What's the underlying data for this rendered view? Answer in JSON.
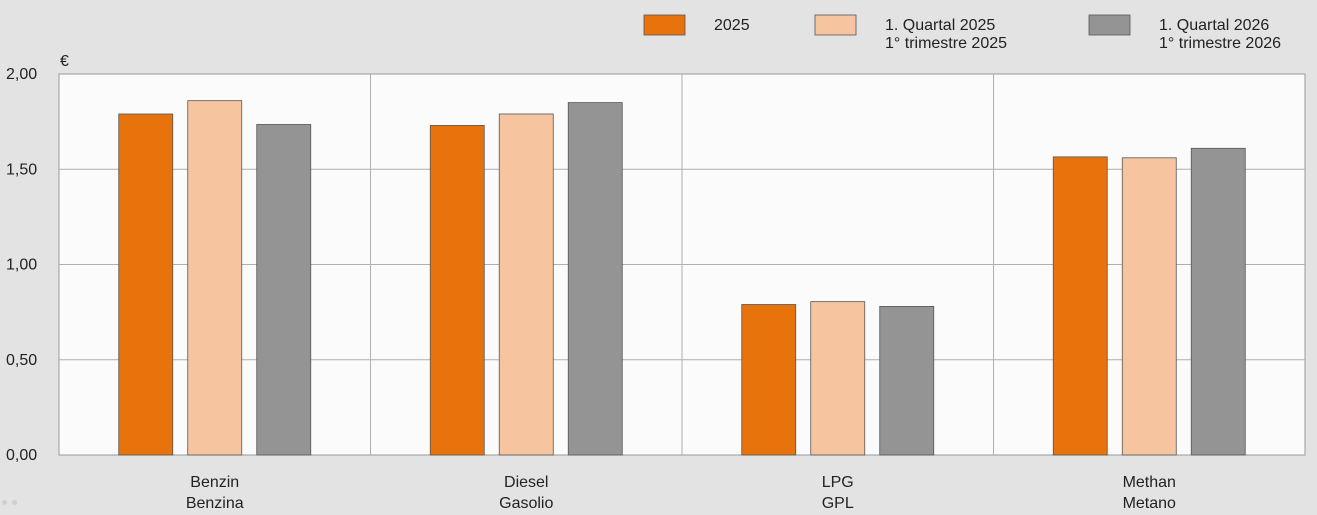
{
  "chart_data": {
    "type": "bar",
    "unit": "€",
    "ylim": [
      0,
      2
    ],
    "yticks": [
      "0,00",
      "0,50",
      "1,00",
      "1,50",
      "2,00"
    ],
    "ytick_values": [
      0,
      0.5,
      1,
      1.5,
      2
    ],
    "grid": true,
    "legend_position": "top-right",
    "categories": [
      {
        "line1": "Benzin",
        "line2": "Benzina"
      },
      {
        "line1": "Diesel",
        "line2": "Gasolio"
      },
      {
        "line1": "LPG",
        "line2": "GPL"
      },
      {
        "line1": "Methan",
        "line2": "Metano"
      }
    ],
    "series": [
      {
        "label1": "2025",
        "label2": "",
        "color": "#e8730c",
        "values": [
          1.79,
          1.73,
          0.79,
          1.565
        ]
      },
      {
        "label1": "1. Quartal 2025",
        "label2": "1° trimestre 2025",
        "color": "#f7c4a0",
        "values": [
          1.86,
          1.79,
          0.805,
          1.56
        ]
      },
      {
        "label1": "1. Quartal 2026",
        "label2": "1° trimestre 2026",
        "color": "#949494",
        "values": [
          1.735,
          1.85,
          0.78,
          1.61
        ]
      }
    ]
  }
}
